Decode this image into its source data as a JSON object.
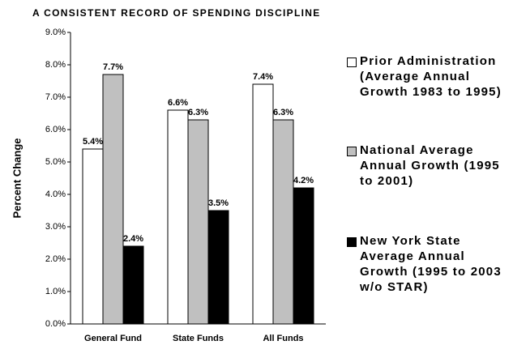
{
  "chart_data": {
    "type": "bar",
    "title": "A CONSISTENT RECORD OF SPENDING DISCIPLINE",
    "y_label": "Percent Change",
    "categories": [
      "General Fund",
      "State Funds",
      "All Funds"
    ],
    "series": [
      {
        "name": "Prior Administration (Average Annual Growth 1983 to 1995)",
        "color": "#ffffff",
        "values": [
          5.4,
          6.6,
          7.4
        ],
        "value_labels": [
          "5.4%",
          "6.6%",
          "7.4%"
        ]
      },
      {
        "name": "National Average Annual Growth (1995 to 2001)",
        "color": "#c0c0c0",
        "values": [
          7.7,
          6.3,
          6.3
        ],
        "value_labels": [
          "7.7%",
          "6.3%",
          "6.3%"
        ]
      },
      {
        "name": "New York State Average Annual Growth (1995 to 2003 w/o STAR)",
        "color": "#000000",
        "values": [
          2.4,
          3.5,
          4.2
        ],
        "value_labels": [
          "2.4%",
          "3.5%",
          "4.2%"
        ]
      }
    ],
    "ylim": [
      0,
      9
    ],
    "yticks": [
      {
        "value": 0,
        "label": "0.0%"
      },
      {
        "value": 1,
        "label": "1.0%"
      },
      {
        "value": 2,
        "label": "2.0%"
      },
      {
        "value": 3,
        "label": "3.0%"
      },
      {
        "value": 4,
        "label": "4.0%"
      },
      {
        "value": 5,
        "label": "5.0%"
      },
      {
        "value": 6,
        "label": "6.0%"
      },
      {
        "value": 7,
        "label": "7.0%"
      },
      {
        "value": 8,
        "label": "8.0%"
      },
      {
        "value": 9,
        "label": "9.0%"
      }
    ],
    "grid": false,
    "legend": "right"
  }
}
